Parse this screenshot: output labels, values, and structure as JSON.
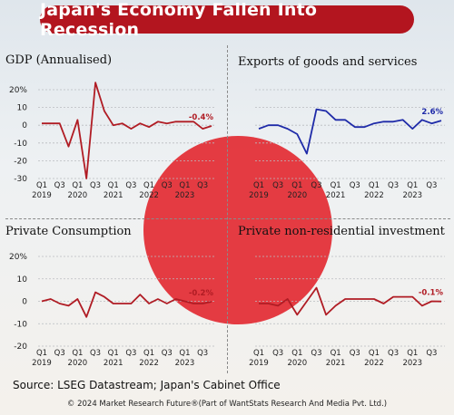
{
  "header": {
    "title": "Japan's Economy Fallen Into Recession"
  },
  "footer": {
    "source": "Source: LSEG Datastream; Japan's Cabinet Office",
    "copyright": "© 2024 Market Research Future®(Part of WantStats Research And Media Pvt. Ltd.)"
  },
  "colors": {
    "accent": "#b3151f",
    "red_line": "#b01c24",
    "blue_line": "#1e2aa8",
    "sun": "#e2272f"
  },
  "chart_data": [
    {
      "type": "line",
      "title": "GDP (Annualised)",
      "x": [
        "Q1 2019",
        "Q2 2019",
        "Q3 2019",
        "Q4 2019",
        "Q1 2020",
        "Q2 2020",
        "Q3 2020",
        "Q4 2020",
        "Q1 2021",
        "Q2 2021",
        "Q3 2021",
        "Q4 2021",
        "Q1 2022",
        "Q2 2022",
        "Q3 2022",
        "Q4 2022",
        "Q1 2023",
        "Q2 2023",
        "Q3 2023",
        "Q4 2023"
      ],
      "series": [
        {
          "values": [
            1,
            1,
            1,
            -12,
            3,
            -30,
            24,
            8,
            0,
            1,
            -2,
            1,
            -1,
            2,
            1,
            2,
            2,
            2,
            -2,
            -0.4
          ]
        }
      ],
      "yticks": [
        "20%",
        "10",
        "0",
        "-10",
        "-20",
        "-30"
      ],
      "ylim": [
        -30,
        20
      ],
      "xticks": [
        {
          "q": "Q1",
          "y": "2019"
        },
        {
          "q": "Q3",
          "y": ""
        },
        {
          "q": "Q1",
          "y": "2020"
        },
        {
          "q": "Q3",
          "y": ""
        },
        {
          "q": "Q1",
          "y": "2021"
        },
        {
          "q": "Q3",
          "y": ""
        },
        {
          "q": "Q1",
          "y": "2022"
        },
        {
          "q": "Q3",
          "y": ""
        },
        {
          "q": "Q1",
          "y": "2023"
        },
        {
          "q": "Q3",
          "y": ""
        }
      ],
      "end_label": "-0.4%",
      "color": "#b01c24"
    },
    {
      "type": "line",
      "title": "Exports of goods and services",
      "x": [
        "Q1 2019",
        "Q2 2019",
        "Q3 2019",
        "Q4 2019",
        "Q1 2020",
        "Q2 2020",
        "Q3 2020",
        "Q4 2020",
        "Q1 2021",
        "Q2 2021",
        "Q3 2021",
        "Q4 2021",
        "Q1 2022",
        "Q2 2022",
        "Q3 2022",
        "Q4 2022",
        "Q1 2023",
        "Q2 2023",
        "Q3 2023",
        "Q4 2023"
      ],
      "series": [
        {
          "values": [
            -2,
            0,
            0,
            -2,
            -5,
            -16,
            9,
            8,
            3,
            3,
            -1,
            -1,
            1,
            2,
            2,
            3,
            -2,
            3,
            1,
            2.6
          ]
        }
      ],
      "yticks": [],
      "ylim": [
        -30,
        20
      ],
      "xticks": [
        {
          "q": "Q1",
          "y": "2019"
        },
        {
          "q": "Q3",
          "y": ""
        },
        {
          "q": "Q1",
          "y": "2020"
        },
        {
          "q": "Q3",
          "y": ""
        },
        {
          "q": "Q1",
          "y": "2021"
        },
        {
          "q": "Q3",
          "y": ""
        },
        {
          "q": "Q1",
          "y": "2022"
        },
        {
          "q": "Q3",
          "y": ""
        },
        {
          "q": "Q1",
          "y": "2023"
        },
        {
          "q": "Q3",
          "y": ""
        }
      ],
      "end_label": "2.6%",
      "color": "#1e2aa8"
    },
    {
      "type": "line",
      "title": "Private Consumption",
      "x": [
        "Q1 2019",
        "Q2 2019",
        "Q3 2019",
        "Q4 2019",
        "Q1 2020",
        "Q2 2020",
        "Q3 2020",
        "Q4 2020",
        "Q1 2021",
        "Q2 2021",
        "Q3 2021",
        "Q4 2021",
        "Q1 2022",
        "Q2 2022",
        "Q3 2022",
        "Q4 2022",
        "Q1 2023",
        "Q2 2023",
        "Q3 2023",
        "Q4 2023"
      ],
      "series": [
        {
          "values": [
            0,
            1,
            -1,
            -2,
            1,
            -7,
            4,
            2,
            -1,
            -1,
            -1,
            3,
            -1,
            1,
            -1,
            1,
            0,
            -1,
            -1,
            -0.2
          ]
        }
      ],
      "yticks": [
        "20%",
        "10",
        "0",
        "-10",
        "-20"
      ],
      "ylim": [
        -20,
        20
      ],
      "xticks": [
        {
          "q": "Q1",
          "y": "2019"
        },
        {
          "q": "Q3",
          "y": ""
        },
        {
          "q": "Q1",
          "y": "2020"
        },
        {
          "q": "Q3",
          "y": ""
        },
        {
          "q": "Q1",
          "y": "2021"
        },
        {
          "q": "Q3",
          "y": ""
        },
        {
          "q": "Q1",
          "y": "2022"
        },
        {
          "q": "Q3",
          "y": ""
        },
        {
          "q": "Q1",
          "y": "2023"
        },
        {
          "q": "Q3",
          "y": ""
        }
      ],
      "end_label": "-0.2%",
      "color": "#b01c24"
    },
    {
      "type": "line",
      "title": "Private non-residential investment",
      "x": [
        "Q1 2019",
        "Q2 2019",
        "Q3 2019",
        "Q4 2019",
        "Q1 2020",
        "Q2 2020",
        "Q3 2020",
        "Q4 2020",
        "Q1 2021",
        "Q2 2021",
        "Q3 2021",
        "Q4 2021",
        "Q1 2022",
        "Q2 2022",
        "Q3 2022",
        "Q4 2022",
        "Q1 2023",
        "Q2 2023",
        "Q3 2023",
        "Q4 2023"
      ],
      "series": [
        {
          "values": [
            -1,
            -1,
            -2,
            1,
            -6,
            0,
            6,
            -6,
            -2,
            1,
            1,
            1,
            1,
            -1,
            2,
            2,
            2,
            -2,
            0,
            -0.1
          ]
        }
      ],
      "yticks": [],
      "ylim": [
        -20,
        20
      ],
      "xticks": [
        {
          "q": "Q1",
          "y": "2019"
        },
        {
          "q": "Q3",
          "y": ""
        },
        {
          "q": "Q1",
          "y": "2020"
        },
        {
          "q": "Q3",
          "y": ""
        },
        {
          "q": "Q1",
          "y": "2021"
        },
        {
          "q": "Q3",
          "y": ""
        },
        {
          "q": "Q1",
          "y": "2022"
        },
        {
          "q": "Q3",
          "y": ""
        },
        {
          "q": "Q1",
          "y": "2023"
        },
        {
          "q": "Q3",
          "y": ""
        }
      ],
      "end_label": "-0.1%",
      "color": "#b01c24"
    }
  ]
}
